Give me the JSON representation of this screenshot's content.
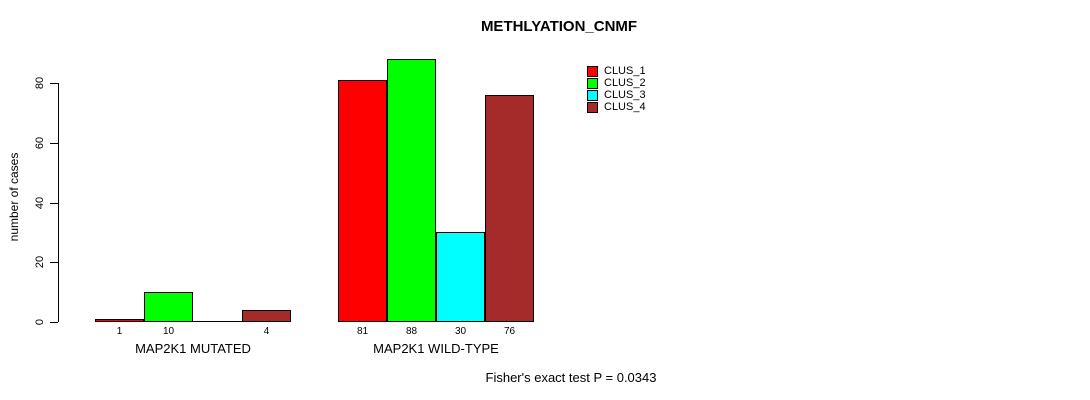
{
  "chart_data": {
    "type": "bar",
    "title": "METHLYATION_CNMF",
    "ylabel": "number of cases",
    "ylim": [
      0,
      90
    ],
    "yticks": [
      0,
      20,
      40,
      60,
      80
    ],
    "grid": false,
    "legend_position": "top-right",
    "categories": [
      "MAP2K1 MUTATED",
      "MAP2K1 WILD-TYPE"
    ],
    "series": [
      {
        "name": "CLUS_1",
        "color": "#ff0000",
        "values": [
          1,
          81
        ]
      },
      {
        "name": "CLUS_2",
        "color": "#00ff00",
        "values": [
          10,
          88
        ]
      },
      {
        "name": "CLUS_3",
        "color": "#00ffff",
        "values": [
          0,
          30
        ]
      },
      {
        "name": "CLUS_4",
        "color": "#a52a2a",
        "values": [
          4,
          76
        ]
      }
    ],
    "bar_value_labels": [
      [
        "1",
        "10",
        "",
        "4"
      ],
      [
        "81",
        "88",
        "30",
        "76"
      ]
    ],
    "legend": [
      "CLUS_1",
      "CLUS_2",
      "CLUS_3",
      "CLUS_4"
    ],
    "annotation": "Fisher's exact test P = 0.0343"
  }
}
